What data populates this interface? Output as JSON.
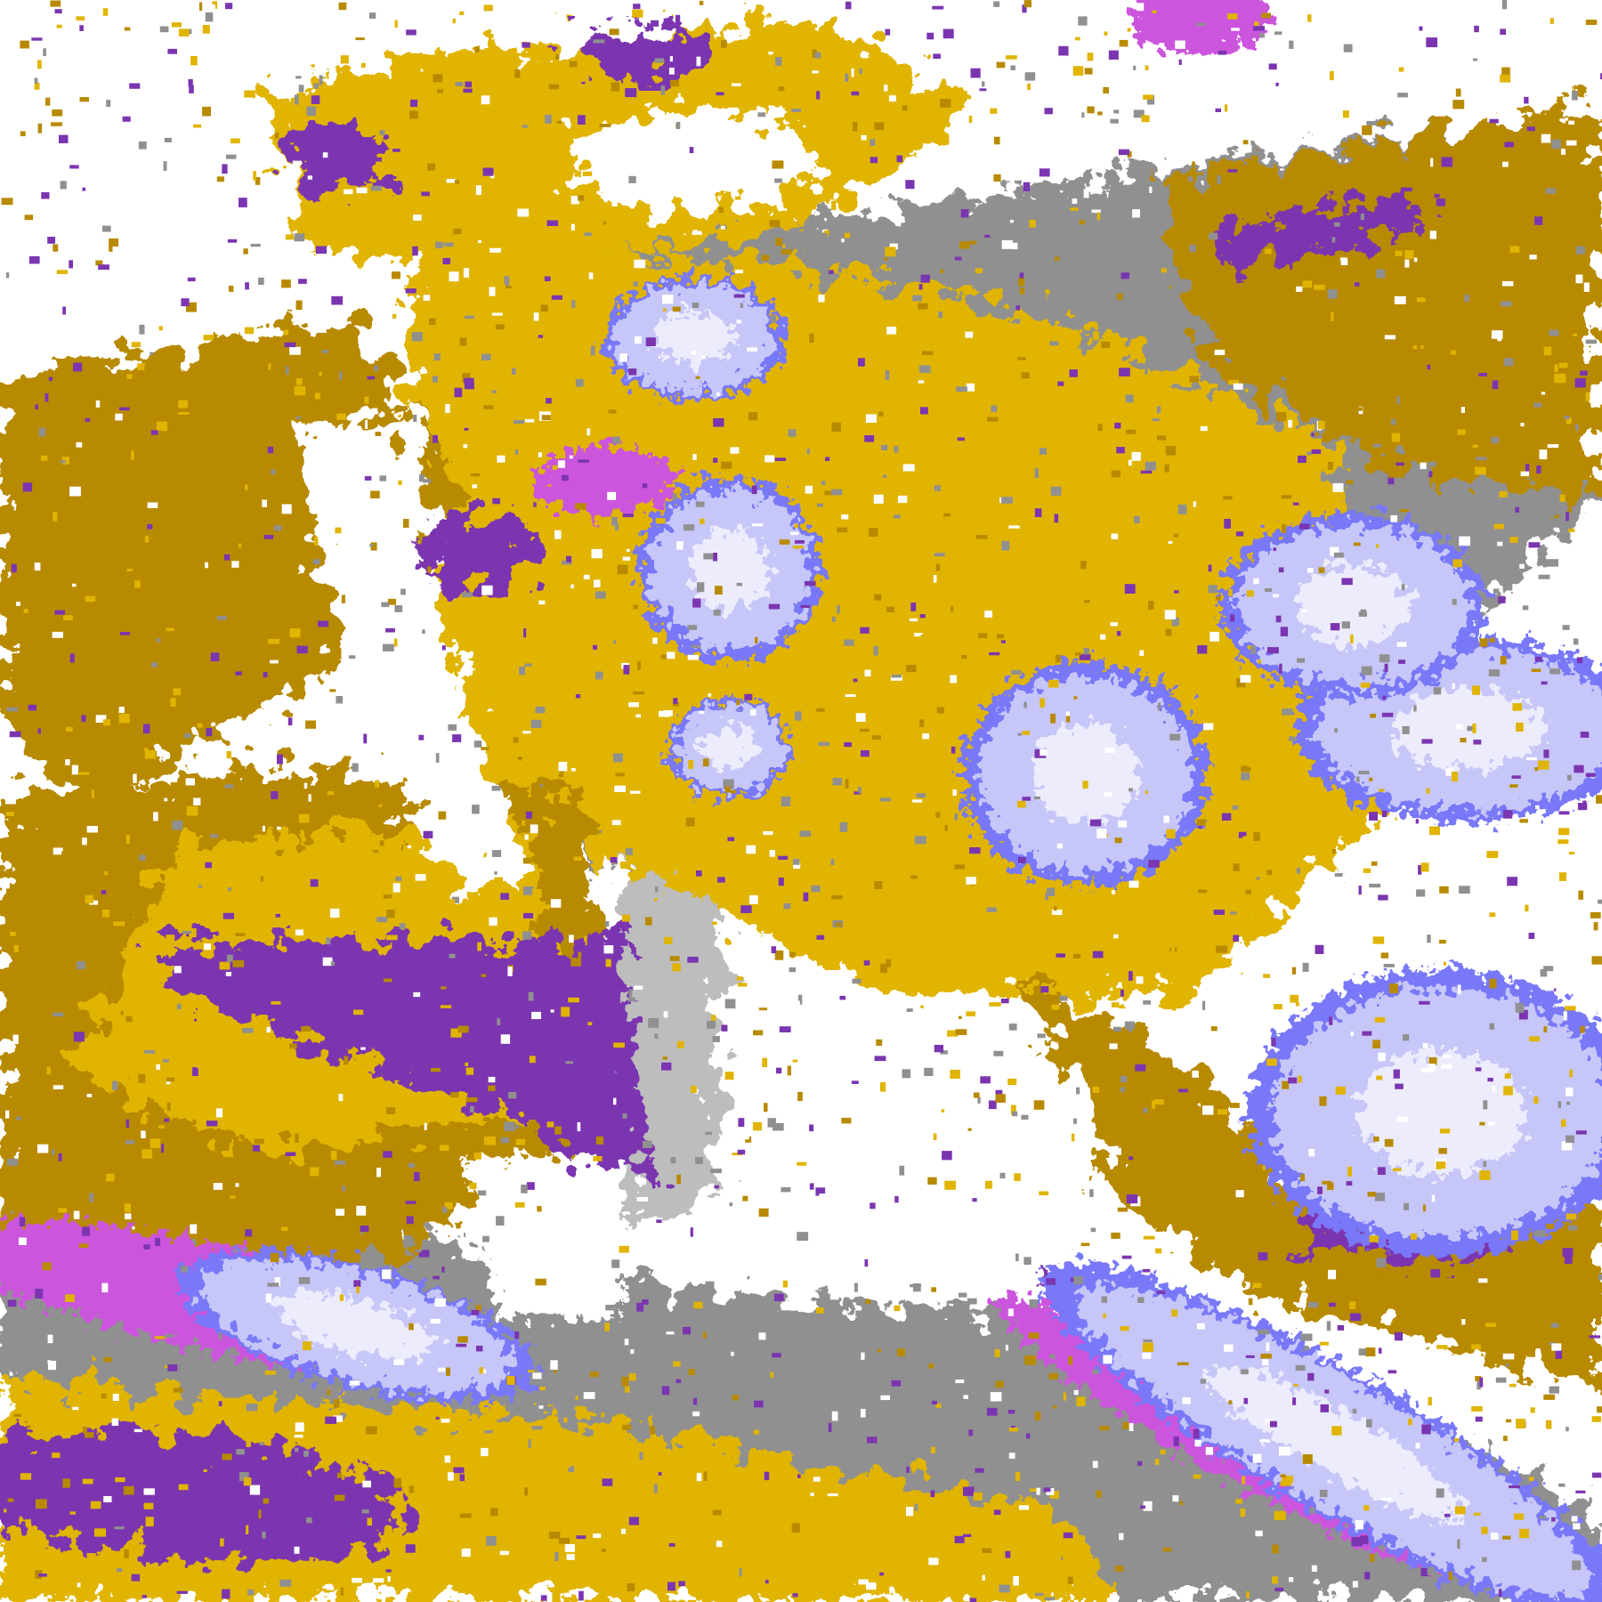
{
  "image": {
    "kind": "cloud-type classification satellite map",
    "palette": {
      "clear": "#ffffff",
      "gold": "#e0b400",
      "dark_gold": "#b88a00",
      "purple": "#7b35b0",
      "magenta": "#cc55dd",
      "periwinkle": "#7878f8",
      "lavender": "#c6c6f8",
      "pale_lavender": "#ececfc",
      "gray": "#909090",
      "light_gray": "#bdbdbd"
    }
  }
}
